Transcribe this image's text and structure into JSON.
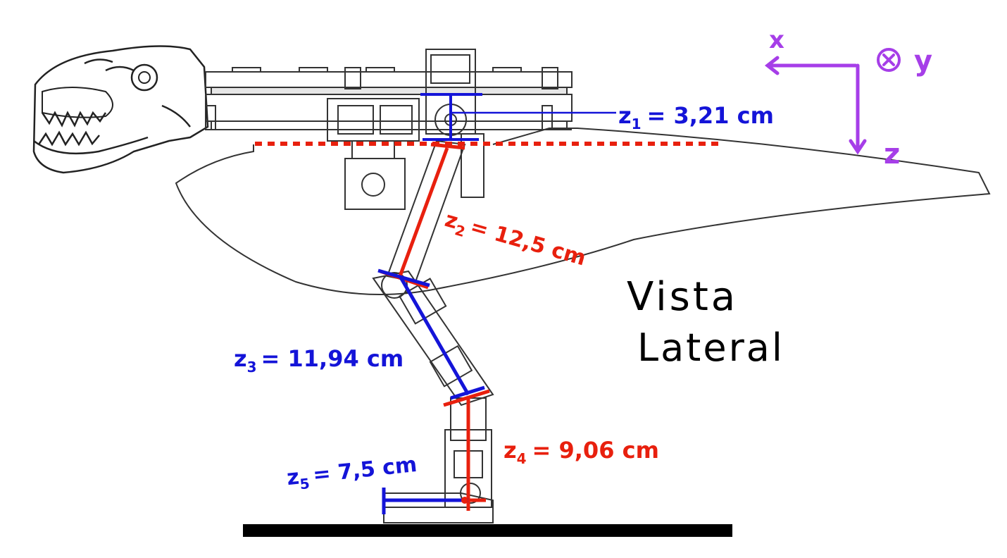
{
  "title": {
    "line1": "Vista",
    "line2": "Lateral"
  },
  "axes": {
    "x_label": "x",
    "y_label": "y",
    "z_label": "z"
  },
  "colors": {
    "blue": "#1414d8",
    "red": "#e8200e",
    "purple": "#a63ee8",
    "black": "#000000",
    "drawing": "#333333"
  },
  "segments": [
    {
      "id": "z1",
      "label": "z",
      "sub": "1",
      "value_text": "= 3,21 cm",
      "color": "blue"
    },
    {
      "id": "z2",
      "label": "z",
      "sub": "2",
      "value_text": "= 12,5 cm",
      "color": "red"
    },
    {
      "id": "z3",
      "label": "z",
      "sub": "3",
      "value_text": "= 11,94 cm",
      "color": "blue"
    },
    {
      "id": "z4",
      "label": "z",
      "sub": "4",
      "value_text": "= 9,06 cm",
      "color": "red"
    },
    {
      "id": "z5",
      "label": "z",
      "sub": "5",
      "value_text": "= 7,5 cm",
      "color": "blue"
    }
  ]
}
